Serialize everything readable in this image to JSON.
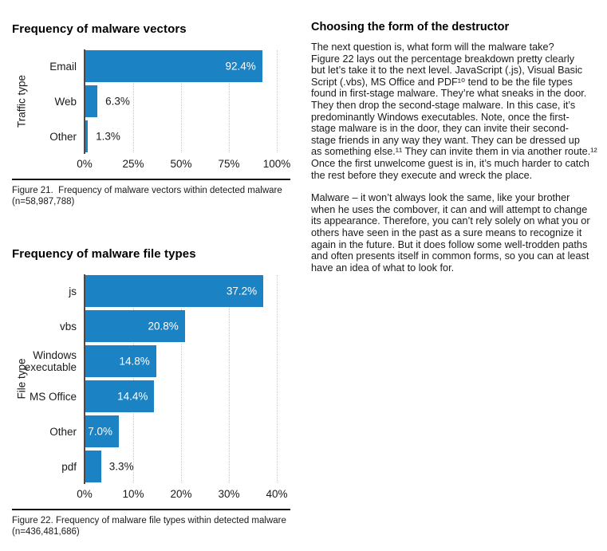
{
  "colors": {
    "bar_blue": "#1b82c4",
    "axis_gray": "#4a4a4c",
    "grid_dotted_gray": "#c9c9c9",
    "text_black": "#1a1a1a"
  },
  "chart_data": [
    {
      "type": "bar",
      "orientation": "horizontal",
      "title": "Frequency of malware vectors",
      "ylabel": "Traffic type",
      "xlabel": "",
      "categories": [
        "Email",
        "Web",
        "Other"
      ],
      "values": [
        92.4,
        6.3,
        1.3
      ],
      "value_labels": [
        "92.4%",
        "6.3%",
        "1.3%"
      ],
      "xlim": [
        0,
        100
      ],
      "xticks": [
        0,
        25,
        50,
        75,
        100
      ],
      "xtick_labels": [
        "0%",
        "25%",
        "50%",
        "75%",
        "100%"
      ],
      "grid": "vertical dotted lines at ticks",
      "legend": "none",
      "caption": "Figure 21.  Frequency of malware vectors within detected malware\n(n=58,987,788)"
    },
    {
      "type": "bar",
      "orientation": "horizontal",
      "title": "Frequency of malware file types",
      "ylabel": "File type",
      "xlabel": "",
      "categories": [
        "js",
        "vbs",
        "Windows\nexecutable",
        "MS Office",
        "Other",
        "pdf"
      ],
      "values": [
        37.2,
        20.8,
        14.8,
        14.4,
        7.0,
        3.3
      ],
      "value_labels": [
        "37.2%",
        "20.8%",
        "14.8%",
        "14.4%",
        "7.0%",
        "3.3%"
      ],
      "xlim": [
        0,
        40
      ],
      "xticks": [
        0,
        10,
        20,
        30,
        40
      ],
      "xtick_labels": [
        "0%",
        "10%",
        "20%",
        "30%",
        "40%"
      ],
      "grid": "vertical dotted lines at ticks",
      "legend": "none",
      "caption": "Figure 22. Frequency of malware file types within detected malware\n(n=436,481,686)"
    }
  ],
  "right_column": {
    "heading": "Choosing the form of the destructor",
    "paragraphs": [
      "The next question is, what form will the malware take?\nFigure 22 lays out the percentage breakdown pretty clearly\nbut let’s take it to the next level. JavaScript (.js), Visual Basic\nScript (.vbs), MS Office and PDF¹⁰ tend to be the file types\nfound in first-stage malware. They’re what sneaks in the door.\nThey then drop the second-stage malware. In this case, it’s\npredominantly Windows executables. Note, once the first-\nstage malware is in the door, they can invite their second-\nstage friends in any way they want. They can be dressed up\nas something else.¹¹ They can invite them in via another route.¹²\nOnce the first unwelcome guest is in, it’s much harder to catch\nthe rest before they execute and wreck the place.",
      "Malware – it won’t always look the same, like your brother\nwhen he uses the combover, it can and will attempt to change\nits appearance. Therefore, you can’t rely solely on what you or\nothers have seen in the past as a sure means to recognize it\nagain in the future. But it does follow some well-trodden paths\nand often presents itself in common forms, so you can at least\nhave an idea of what to look for."
    ]
  }
}
